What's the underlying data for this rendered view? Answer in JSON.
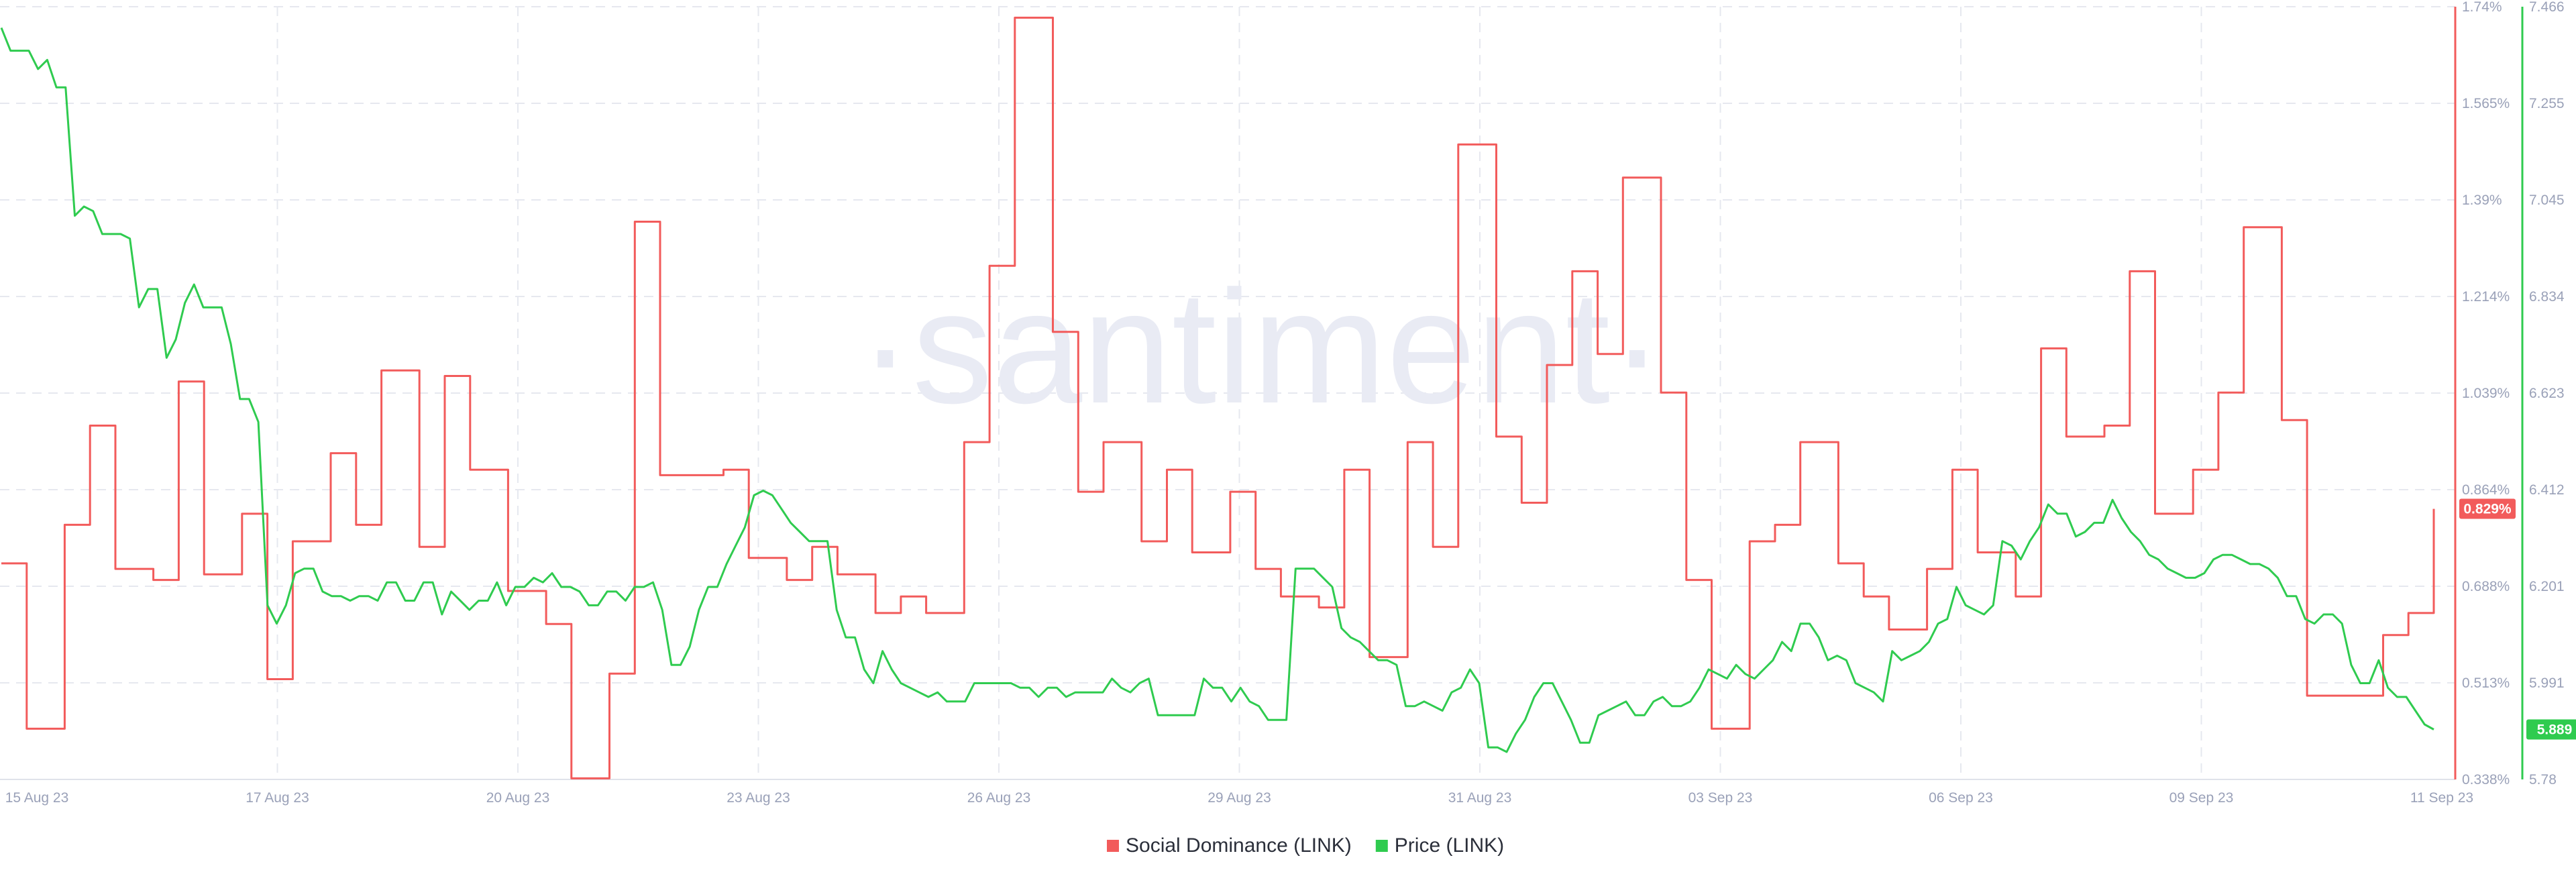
{
  "chart_data": {
    "type": "line",
    "watermark": "·santiment·",
    "x_tick_labels": [
      "15 Aug 23",
      "17 Aug 23",
      "20 Aug 23",
      "23 Aug 23",
      "26 Aug 23",
      "29 Aug 23",
      "31 Aug 23",
      "03 Sep 23",
      "06 Sep 23",
      "09 Sep 23",
      "11 Sep 23"
    ],
    "left_axis": {
      "tick_labels": [
        "1.74%",
        "1.565%",
        "1.39%",
        "1.214%",
        "1.039%",
        "0.864%",
        "0.688%",
        "0.513%",
        "0.338%"
      ],
      "ylim": [
        0.338,
        1.74
      ],
      "unit": "%"
    },
    "right_axis": {
      "tick_labels": [
        "7.466",
        "7.255",
        "7.045",
        "6.834",
        "6.623",
        "6.412",
        "6.201",
        "5.991",
        "5.78"
      ],
      "ylim": [
        5.78,
        7.466
      ]
    },
    "grid": true,
    "legend_position": "bottom-center",
    "colors": {
      "social_dominance": "#f25b5b",
      "price": "#2fcb4f",
      "grid": "#e6e8ef",
      "watermark": "#e9ebf4"
    },
    "series": [
      {
        "name": "Social Dominance (LINK)",
        "axis": "left",
        "last_value_label": "0.829%",
        "values": [
          0.73,
          0.73,
          0.43,
          0.43,
          0.43,
          0.8,
          0.8,
          0.98,
          0.98,
          0.72,
          0.72,
          0.72,
          0.7,
          0.7,
          1.06,
          1.06,
          0.71,
          0.71,
          0.71,
          0.82,
          0.82,
          0.52,
          0.52,
          0.77,
          0.77,
          0.77,
          0.93,
          0.93,
          0.8,
          0.8,
          1.08,
          1.08,
          1.08,
          0.76,
          0.76,
          1.07,
          1.07,
          0.9,
          0.9,
          0.9,
          0.68,
          0.68,
          0.68,
          0.62,
          0.62,
          0.34,
          0.34,
          0.34,
          0.53,
          0.53,
          1.35,
          1.35,
          0.89,
          0.89,
          0.89,
          0.89,
          0.89,
          0.9,
          0.9,
          0.74,
          0.74,
          0.74,
          0.7,
          0.7,
          0.76,
          0.76,
          0.71,
          0.71,
          0.71,
          0.64,
          0.64,
          0.67,
          0.67,
          0.64,
          0.64,
          0.64,
          0.95,
          0.95,
          1.27,
          1.27,
          1.72,
          1.72,
          1.72,
          1.15,
          1.15,
          0.86,
          0.86,
          0.95,
          0.95,
          0.95,
          0.77,
          0.77,
          0.9,
          0.9,
          0.75,
          0.75,
          0.75,
          0.86,
          0.86,
          0.72,
          0.72,
          0.67,
          0.67,
          0.67,
          0.65,
          0.65,
          0.9,
          0.9,
          0.56,
          0.56,
          0.56,
          0.95,
          0.95,
          0.76,
          0.76,
          1.49,
          1.49,
          1.49,
          0.96,
          0.96,
          0.84,
          0.84,
          1.09,
          1.09,
          1.26,
          1.26,
          1.11,
          1.11,
          1.43,
          1.43,
          1.43,
          1.04,
          1.04,
          0.7,
          0.7,
          0.43,
          0.43,
          0.43,
          0.77,
          0.77,
          0.8,
          0.8,
          0.95,
          0.95,
          0.95,
          0.73,
          0.73,
          0.67,
          0.67,
          0.61,
          0.61,
          0.61,
          0.72,
          0.72,
          0.9,
          0.9,
          0.75,
          0.75,
          0.75,
          0.67,
          0.67,
          1.12,
          1.12,
          0.96,
          0.96,
          0.96,
          0.98,
          0.98,
          1.26,
          1.26,
          0.82,
          0.82,
          0.82,
          0.9,
          0.9,
          1.04,
          1.04,
          1.34,
          1.34,
          1.34,
          0.99,
          0.99,
          0.49,
          0.49,
          0.49,
          0.49,
          0.49,
          0.49,
          0.6,
          0.6,
          0.64,
          0.64,
          0.829
        ]
      },
      {
        "name": "Price (LINK)",
        "axis": "right",
        "last_value_label": "5.889",
        "values": [
          7.42,
          7.37,
          7.37,
          7.37,
          7.33,
          7.35,
          7.29,
          7.29,
          7.01,
          7.03,
          7.02,
          6.97,
          6.97,
          6.97,
          6.96,
          6.81,
          6.85,
          6.85,
          6.7,
          6.74,
          6.82,
          6.86,
          6.81,
          6.81,
          6.81,
          6.73,
          6.61,
          6.61,
          6.56,
          6.16,
          6.12,
          6.16,
          6.23,
          6.24,
          6.24,
          6.19,
          6.18,
          6.18,
          6.17,
          6.18,
          6.18,
          6.17,
          6.21,
          6.21,
          6.17,
          6.17,
          6.21,
          6.21,
          6.14,
          6.19,
          6.17,
          6.15,
          6.17,
          6.17,
          6.21,
          6.16,
          6.2,
          6.2,
          6.22,
          6.21,
          6.23,
          6.2,
          6.2,
          6.19,
          6.16,
          6.16,
          6.19,
          6.19,
          6.17,
          6.2,
          6.2,
          6.21,
          6.15,
          6.03,
          6.03,
          6.07,
          6.15,
          6.2,
          6.2,
          6.25,
          6.29,
          6.33,
          6.4,
          6.41,
          6.4,
          6.37,
          6.34,
          6.32,
          6.3,
          6.3,
          6.3,
          6.15,
          6.09,
          6.09,
          6.02,
          5.99,
          6.06,
          6.02,
          5.99,
          5.98,
          5.97,
          5.96,
          5.97,
          5.95,
          5.95,
          5.95,
          5.99,
          5.99,
          5.99,
          5.99,
          5.99,
          5.98,
          5.98,
          5.96,
          5.98,
          5.98,
          5.96,
          5.97,
          5.97,
          5.97,
          5.97,
          6.0,
          5.98,
          5.97,
          5.99,
          6.0,
          5.92,
          5.92,
          5.92,
          5.92,
          5.92,
          6.0,
          5.98,
          5.98,
          5.95,
          5.98,
          5.95,
          5.94,
          5.91,
          5.91,
          5.91,
          6.24,
          6.24,
          6.24,
          6.22,
          6.2,
          6.11,
          6.09,
          6.08,
          6.06,
          6.04,
          6.04,
          6.03,
          5.94,
          5.94,
          5.95,
          5.94,
          5.93,
          5.97,
          5.98,
          6.02,
          5.99,
          5.85,
          5.85,
          5.84,
          5.88,
          5.91,
          5.96,
          5.99,
          5.99,
          5.95,
          5.91,
          5.86,
          5.86,
          5.92,
          5.93,
          5.94,
          5.95,
          5.92,
          5.92,
          5.95,
          5.96,
          5.94,
          5.94,
          5.95,
          5.98,
          6.02,
          6.01,
          6.0,
          6.03,
          6.01,
          6.0,
          6.02,
          6.04,
          6.08,
          6.06,
          6.12,
          6.12,
          6.09,
          6.04,
          6.05,
          6.04,
          5.99,
          5.98,
          5.97,
          5.95,
          6.06,
          6.04,
          6.05,
          6.06,
          6.08,
          6.12,
          6.13,
          6.2,
          6.16,
          6.15,
          6.14,
          6.16,
          6.3,
          6.29,
          6.26,
          6.3,
          6.33,
          6.38,
          6.36,
          6.36,
          6.31,
          6.32,
          6.34,
          6.34,
          6.39,
          6.35,
          6.32,
          6.3,
          6.27,
          6.26,
          6.24,
          6.23,
          6.22,
          6.22,
          6.23,
          6.26,
          6.27,
          6.27,
          6.26,
          6.25,
          6.25,
          6.24,
          6.22,
          6.18,
          6.18,
          6.13,
          6.12,
          6.14,
          6.14,
          6.12,
          6.03,
          5.99,
          5.99,
          6.04,
          5.98,
          5.96,
          5.96,
          5.93,
          5.9,
          5.889
        ]
      }
    ]
  }
}
